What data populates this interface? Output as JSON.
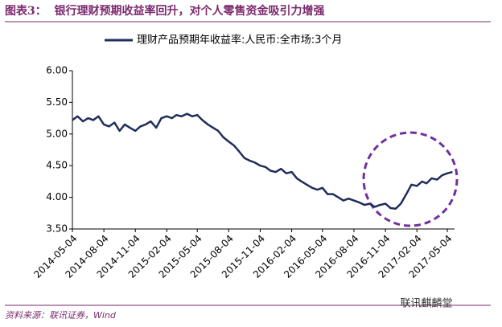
{
  "chart_data": {
    "type": "line",
    "title": "图表3：  银行理财预期收益率回升，对个人零售资金吸引力增强",
    "source": "资料来源：联讯证券，Wind",
    "watermark": "联讯麒麟堂",
    "x": [
      "2014-05-04",
      "2014-05-19",
      "2014-06-04",
      "2014-06-19",
      "2014-07-04",
      "2014-07-19",
      "2014-08-04",
      "2014-08-19",
      "2014-09-04",
      "2014-09-19",
      "2014-10-04",
      "2014-10-19",
      "2014-11-04",
      "2014-11-19",
      "2014-12-04",
      "2014-12-19",
      "2015-01-04",
      "2015-01-19",
      "2015-02-04",
      "2015-02-19",
      "2015-03-04",
      "2015-03-19",
      "2015-04-04",
      "2015-04-19",
      "2015-05-04",
      "2015-05-19",
      "2015-06-04",
      "2015-06-19",
      "2015-07-04",
      "2015-07-19",
      "2015-08-04",
      "2015-08-19",
      "2015-09-04",
      "2015-09-19",
      "2015-10-04",
      "2015-10-19",
      "2015-11-04",
      "2015-11-19",
      "2015-12-04",
      "2015-12-19",
      "2016-01-04",
      "2016-01-19",
      "2016-02-04",
      "2016-02-19",
      "2016-03-04",
      "2016-03-19",
      "2016-04-04",
      "2016-04-19",
      "2016-05-04",
      "2016-05-19",
      "2016-06-04",
      "2016-06-19",
      "2016-07-04",
      "2016-07-19",
      "2016-08-04",
      "2016-08-19",
      "2016-09-04",
      "2016-09-19",
      "2016-10-04",
      "2016-10-19",
      "2016-11-04",
      "2016-11-19",
      "2016-12-04",
      "2016-12-19",
      "2017-01-04",
      "2017-01-19",
      "2017-02-04",
      "2017-02-19",
      "2017-03-04",
      "2017-03-19",
      "2017-04-04",
      "2017-04-19",
      "2017-05-04",
      "2017-05-19"
    ],
    "series": [
      {
        "name": "理财产品预期年收益率:人民币:全市场:3个月",
        "color": "#1f2d5c",
        "values": [
          5.22,
          5.28,
          5.2,
          5.25,
          5.22,
          5.28,
          5.15,
          5.12,
          5.18,
          5.05,
          5.15,
          5.1,
          5.05,
          5.12,
          5.15,
          5.2,
          5.1,
          5.25,
          5.28,
          5.25,
          5.3,
          5.28,
          5.32,
          5.28,
          5.3,
          5.22,
          5.15,
          5.1,
          5.05,
          4.95,
          4.88,
          4.82,
          4.72,
          4.62,
          4.58,
          4.55,
          4.5,
          4.48,
          4.42,
          4.4,
          4.45,
          4.38,
          4.4,
          4.3,
          4.25,
          4.2,
          4.15,
          4.12,
          4.15,
          4.05,
          4.05,
          4.0,
          3.95,
          3.98,
          3.95,
          3.92,
          3.88,
          3.9,
          3.85,
          3.88,
          3.9,
          3.83,
          3.82,
          3.9,
          4.05,
          4.2,
          4.18,
          4.25,
          4.22,
          4.3,
          4.28,
          4.35,
          4.38,
          4.4
        ]
      }
    ],
    "xlim": [
      "2014-05-04",
      "2017-05-25"
    ],
    "xticks": [
      "2014-05-04",
      "2014-08-04",
      "2014-11-04",
      "2015-02-04",
      "2015-05-04",
      "2015-08-04",
      "2015-11-04",
      "2016-02-04",
      "2016-05-04",
      "2016-08-04",
      "2016-11-04",
      "2017-02-04",
      "2017-05-04"
    ],
    "ylim": [
      3.5,
      6.0
    ],
    "yticks": [
      {
        "value": 3.5,
        "label": "3.50"
      },
      {
        "value": 4.0,
        "label": "4.00"
      },
      {
        "value": 4.5,
        "label": "4.50"
      },
      {
        "value": 5.0,
        "label": "5.00"
      },
      {
        "value": 5.5,
        "label": "5.50"
      },
      {
        "value": 6.0,
        "label": "6.00"
      }
    ],
    "grid": false,
    "legend": "top"
  }
}
